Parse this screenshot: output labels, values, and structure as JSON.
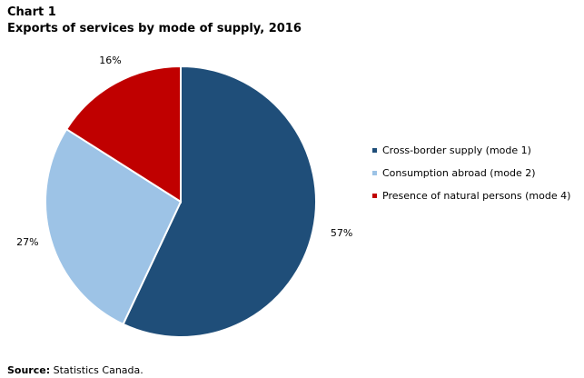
{
  "chart_label": "Chart 1",
  "chart_data": {
    "type": "pie",
    "title": "Exports of services by mode of supply, 2016",
    "slices": [
      {
        "name": "Cross-border supply (mode 1)",
        "value": 57,
        "label": "57%",
        "color": "#1f4e79"
      },
      {
        "name": "Consumption abroad (mode 2)",
        "value": 27,
        "label": "27%",
        "color": "#9dc3e6"
      },
      {
        "name": "Presence of natural persons (mode 4)",
        "value": 16,
        "label": "16%",
        "color": "#c00000"
      }
    ],
    "legend_position": "right"
  },
  "source": {
    "label": "Source:",
    "text": " Statistics Canada."
  }
}
